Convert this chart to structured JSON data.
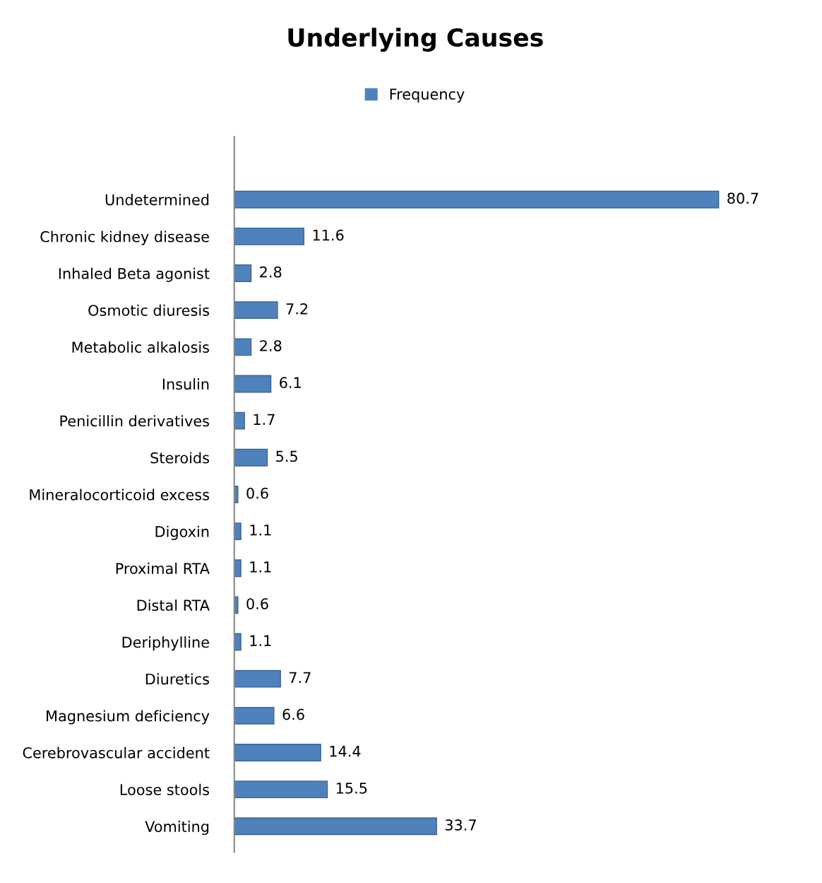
{
  "chart_data": {
    "type": "bar",
    "orientation": "horizontal",
    "title": "Underlying Causes",
    "categories": [
      "Undetermined",
      "Chronic kidney disease",
      "Inhaled Beta agonist",
      "Osmotic diuresis",
      "Metabolic alkalosis",
      "Insulin",
      "Penicillin derivatives",
      "Steroids",
      "Mineralocorticoid excess",
      "Digoxin",
      "Proximal RTA",
      "Distal RTA",
      "Deriphylline",
      "Diuretics",
      "Magnesium deficiency",
      "Cerebrovascular accident",
      "Loose stools",
      "Vomiting"
    ],
    "series": [
      {
        "name": "Frequency",
        "color": "#4f81bd",
        "values": [
          80.7,
          11.6,
          2.8,
          7.2,
          2.8,
          6.1,
          1.7,
          5.5,
          0.6,
          1.1,
          1.1,
          0.6,
          1.1,
          7.7,
          6.6,
          14.4,
          15.5,
          33.7
        ]
      }
    ],
    "data_labels": true,
    "legend": "top",
    "grid": false,
    "tick_labels": "y"
  }
}
